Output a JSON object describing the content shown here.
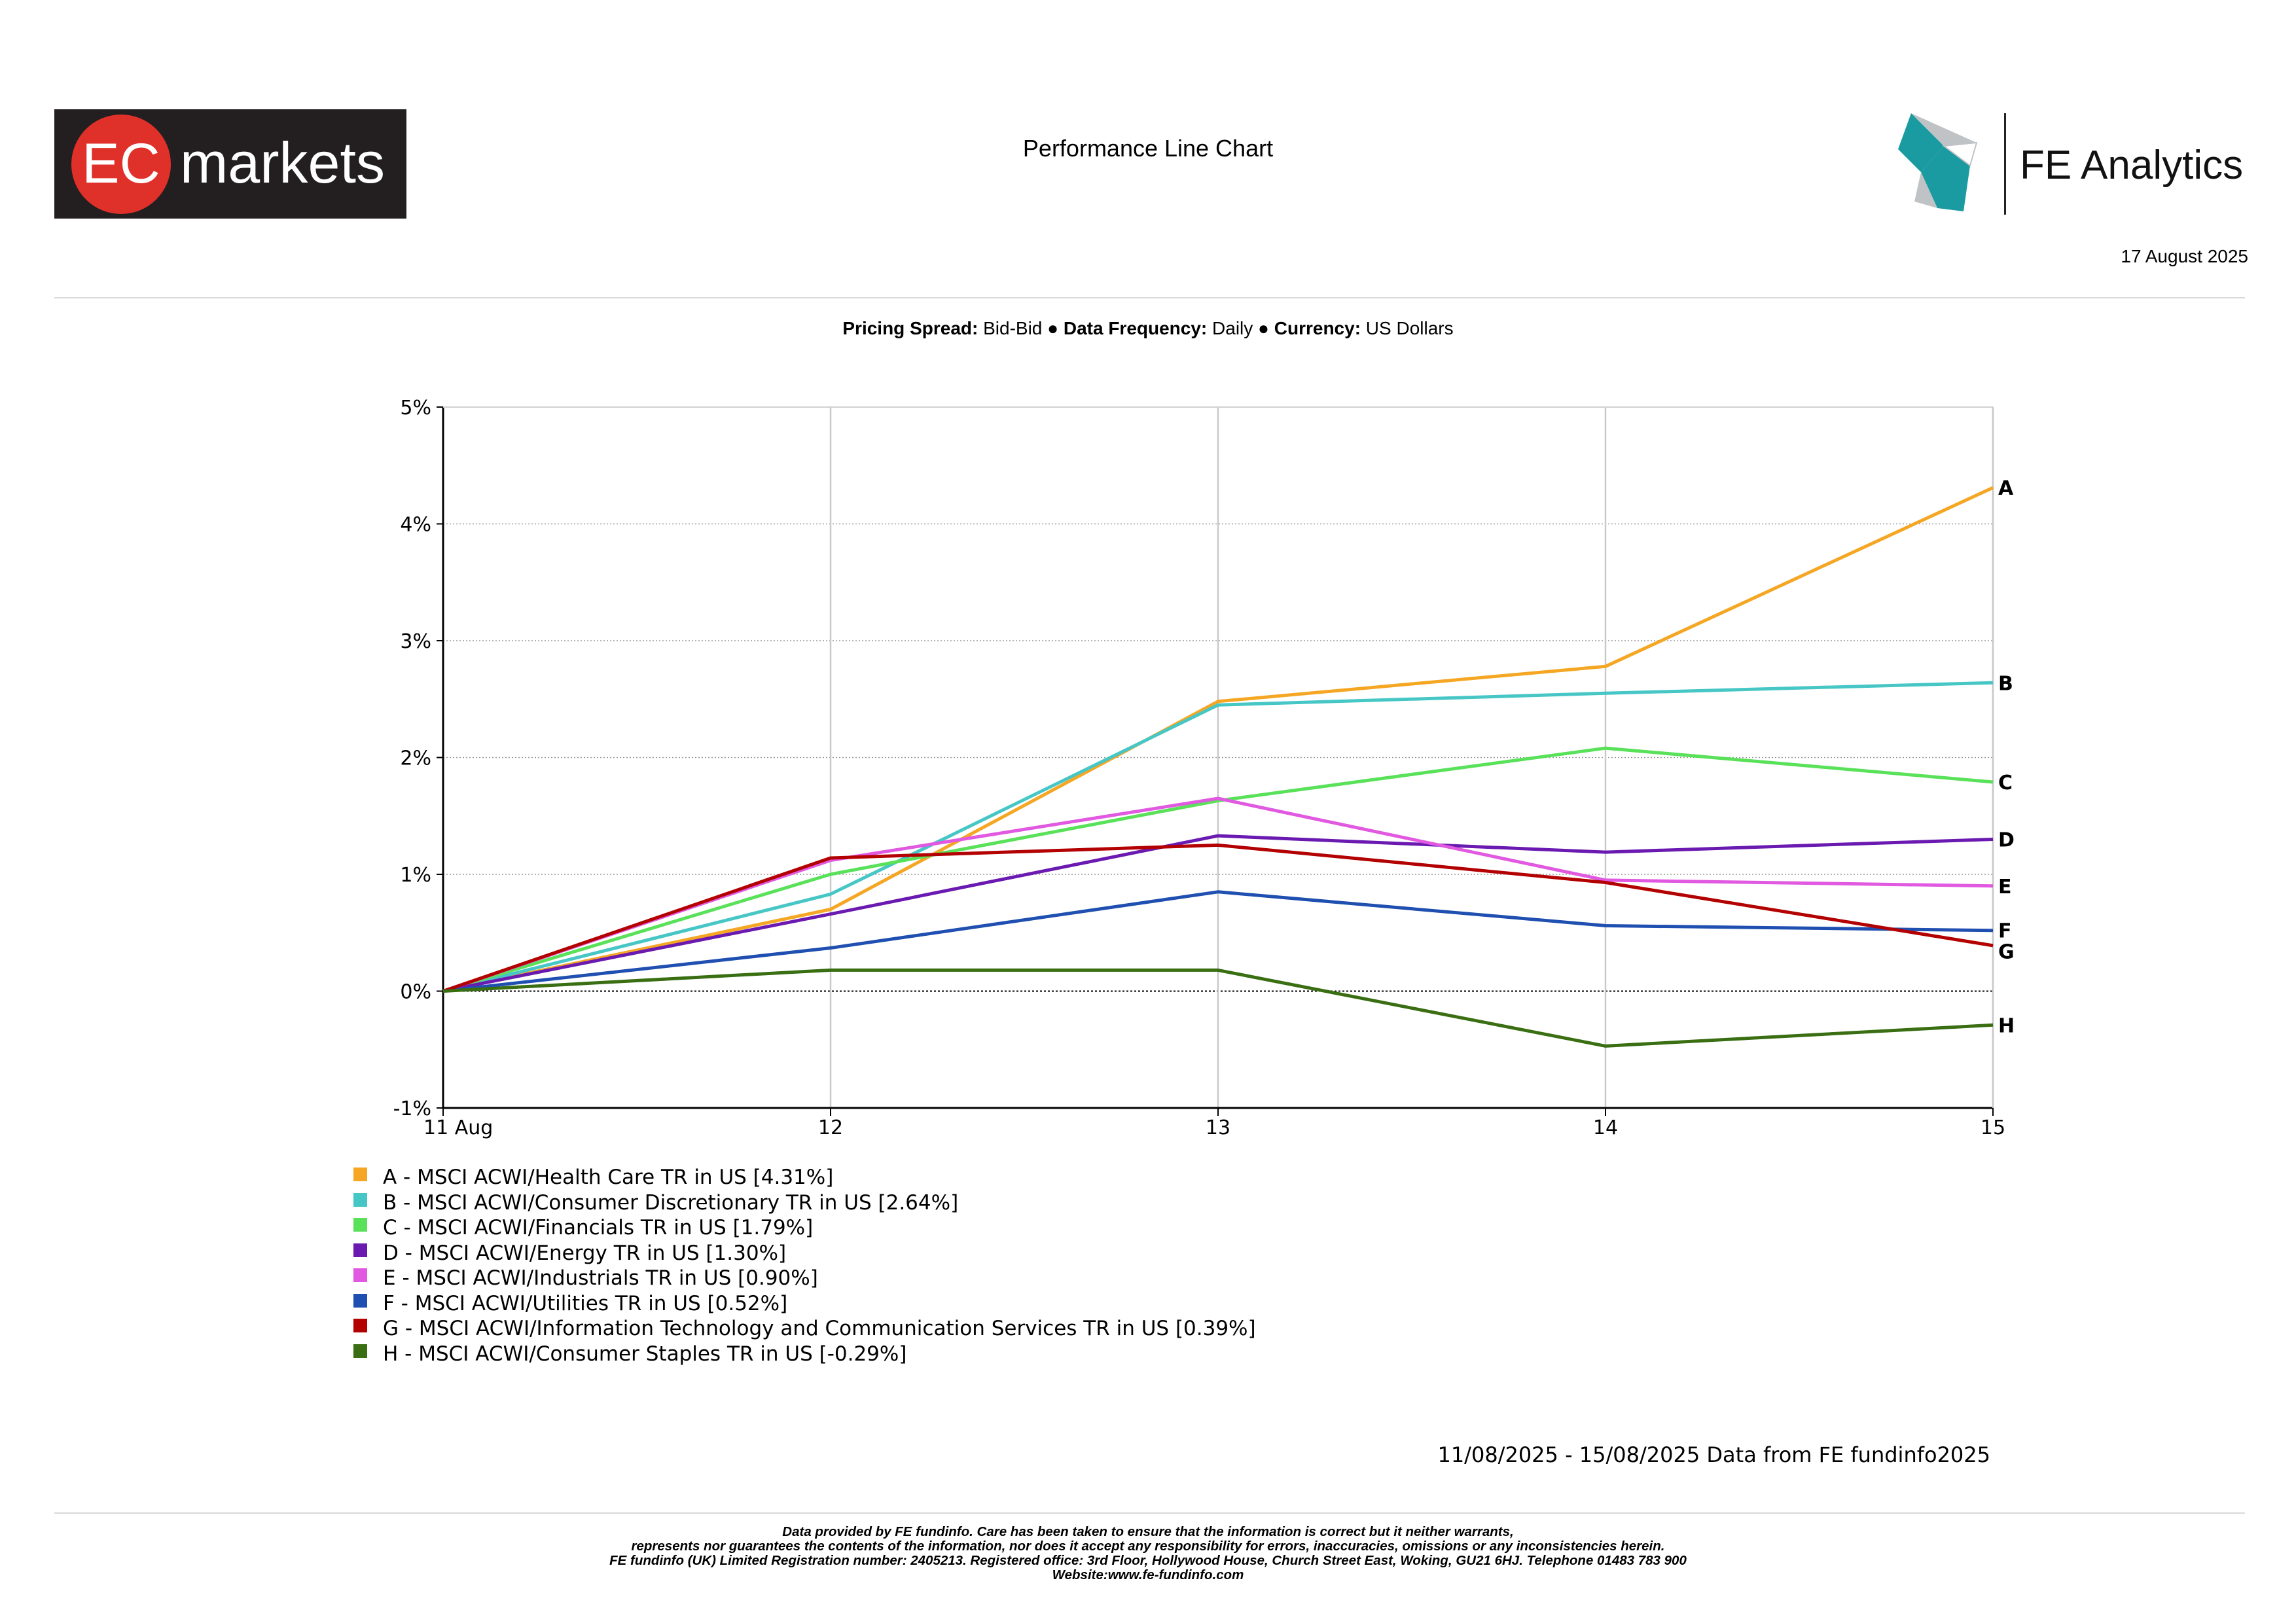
{
  "header": {
    "brand_left": "EC markets",
    "brand_left_parts": {
      "ec": "EC",
      "markets": "markets"
    },
    "brand_right": "FE Analytics",
    "title": "Performance Line Chart",
    "date": "17 August 2025",
    "colors": {
      "ec_red": "#e0302a",
      "ec_bg": "#231f20",
      "fe_teal": "#1a9ba1",
      "fe_grey": "#bfc3c6"
    }
  },
  "params": {
    "pricing_label": "Pricing Spread:",
    "pricing_value": "Bid-Bid",
    "sep": "●",
    "frequency_label": "Data Frequency:",
    "frequency_value": "Daily",
    "currency_label": "Currency:",
    "currency_value": "US Dollars"
  },
  "chart_data": {
    "type": "line",
    "x": [
      "11 Aug",
      "12",
      "13",
      "14",
      "15"
    ],
    "ylim": [
      -1,
      5
    ],
    "yticks": [
      -1,
      0,
      1,
      2,
      3,
      4,
      5
    ],
    "ytick_labels": [
      "-1%",
      "0%",
      "1%",
      "2%",
      "3%",
      "4%",
      "5%"
    ],
    "grid": true,
    "legend_placement": "below",
    "series": [
      {
        "letter": "A",
        "name": "A - MSCI ACWI/Health Care TR in US [4.31%]",
        "color": "#f5a623",
        "values": [
          0,
          0.7,
          2.48,
          2.78,
          4.31
        ]
      },
      {
        "letter": "B",
        "name": "B - MSCI ACWI/Consumer Discretionary TR in US [2.64%]",
        "color": "#47c6c6",
        "values": [
          0,
          0.83,
          2.45,
          2.55,
          2.64
        ]
      },
      {
        "letter": "C",
        "name": "C - MSCI ACWI/Financials TR in US [1.79%]",
        "color": "#5ae15a",
        "values": [
          0,
          1.0,
          1.63,
          2.08,
          1.79
        ]
      },
      {
        "letter": "D",
        "name": "D - MSCI ACWI/Energy TR in US [1.30%]",
        "color": "#6a1ab0",
        "values": [
          0,
          0.66,
          1.33,
          1.19,
          1.3
        ]
      },
      {
        "letter": "E",
        "name": "E - MSCI ACWI/Industrials TR in US [0.90%]",
        "color": "#e059e0",
        "values": [
          0,
          1.12,
          1.65,
          0.95,
          0.9
        ]
      },
      {
        "letter": "F",
        "name": "F - MSCI ACWI/Utilities TR in US [0.52%]",
        "color": "#1f4fb0",
        "values": [
          0,
          0.37,
          0.85,
          0.56,
          0.52
        ]
      },
      {
        "letter": "G",
        "name": "G - MSCI ACWI/Information Technology and Communication Services TR in US [0.39%]",
        "color": "#b30000",
        "values": [
          0,
          1.14,
          1.25,
          0.93,
          0.39
        ]
      },
      {
        "letter": "H",
        "name": "H - MSCI ACWI/Consumer Staples TR in US [-0.29%]",
        "color": "#3a6e12",
        "values": [
          0,
          0.18,
          0.18,
          -0.47,
          -0.29
        ]
      }
    ]
  },
  "source_note": "11/08/2025 - 15/08/2025 Data from FE fundinfo2025",
  "disclaimer": [
    "Data provided by FE fundinfo. Care has been taken to ensure that the information is correct but it neither warrants,",
    "represents nor guarantees the contents of the information, nor does it accept any responsibility for errors, inaccuracies, omissions or any inconsistencies herein.",
    "FE fundinfo (UK) Limited Registration number: 2405213. Registered office: 3rd Floor, Hollywood House, Church Street East, Woking, GU21 6HJ. Telephone 01483 783 900",
    "Website:www.fe-fundinfo.com"
  ]
}
